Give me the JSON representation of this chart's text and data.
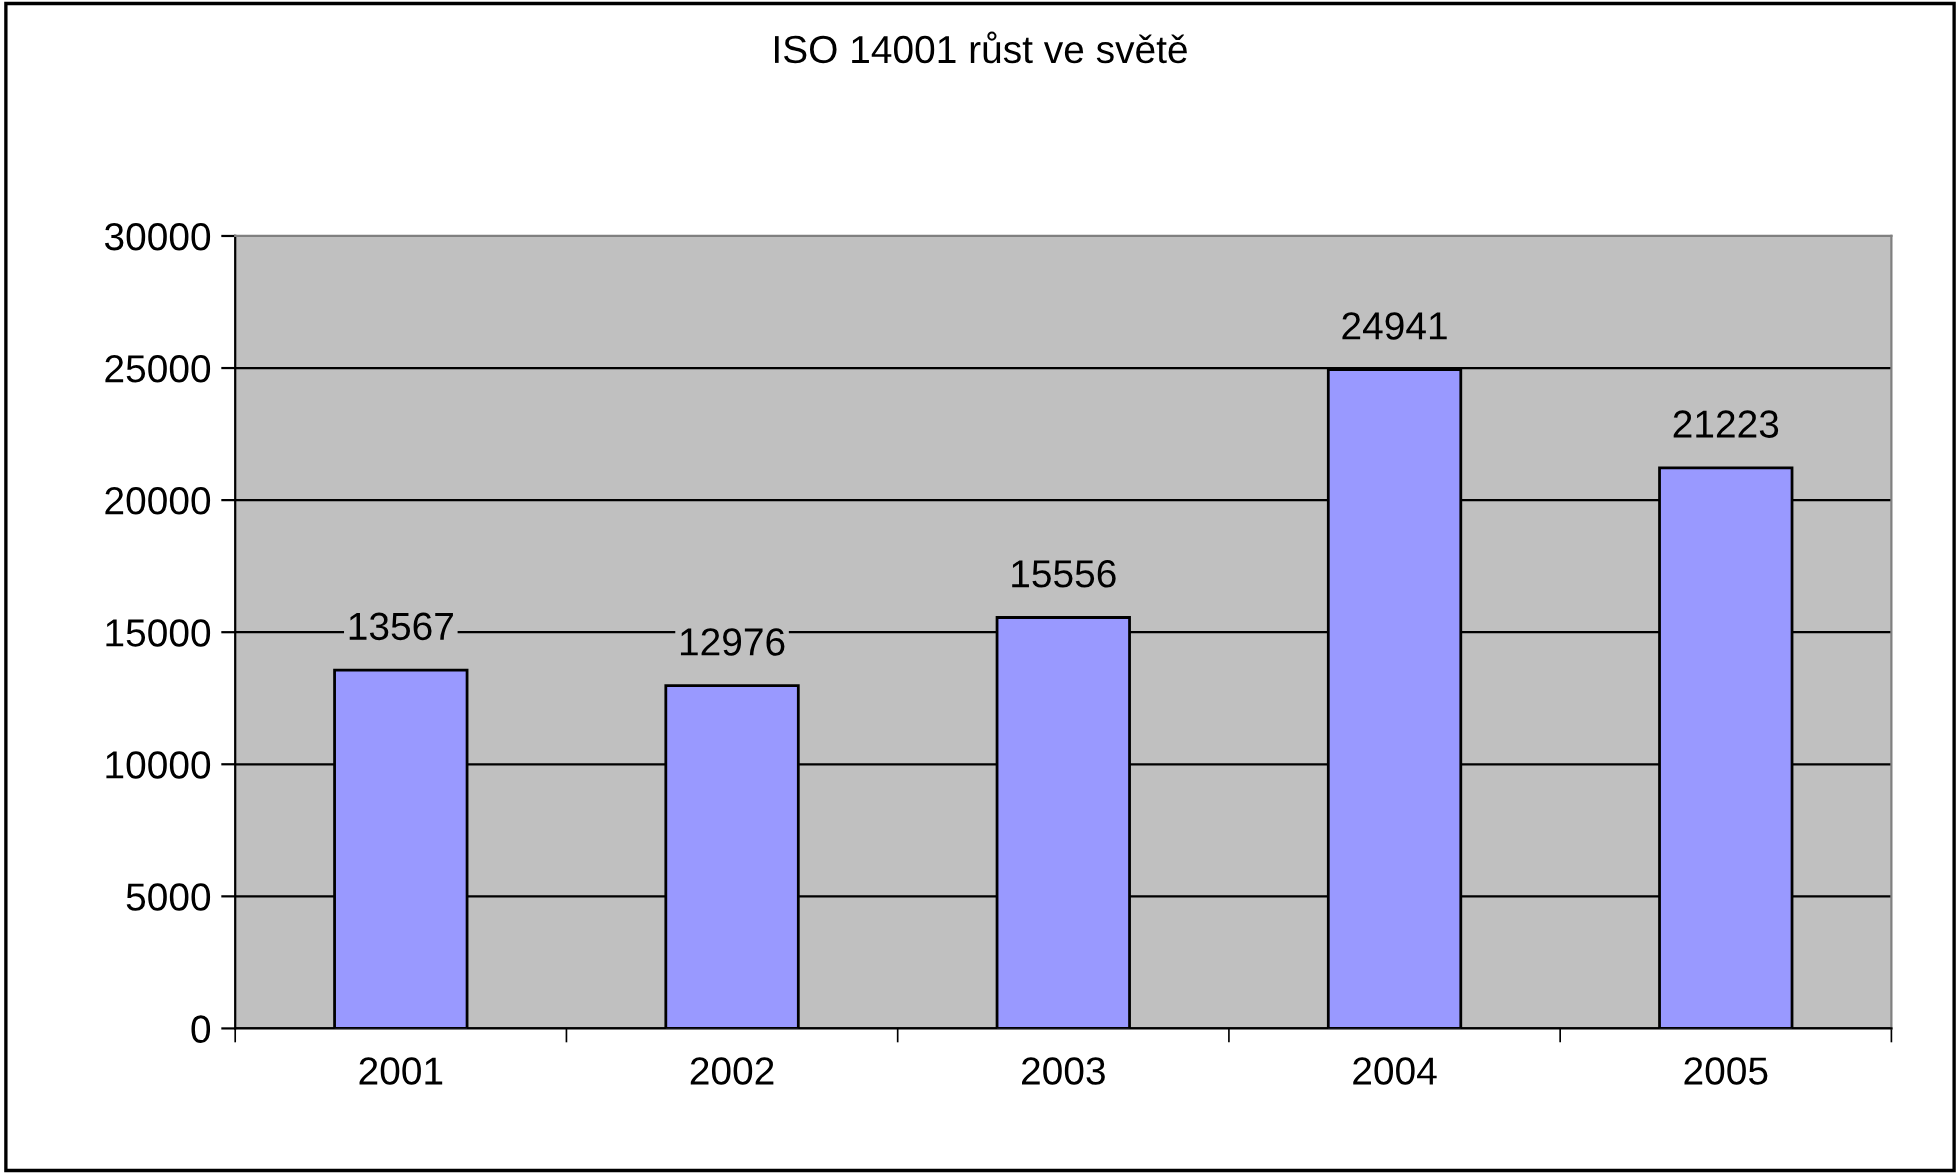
{
  "chart_data": {
    "type": "bar",
    "title": "ISO 14001 růst ve světě",
    "categories": [
      "2001",
      "2002",
      "2003",
      "2004",
      "2005"
    ],
    "values": [
      13567,
      12976,
      15556,
      24941,
      21223
    ],
    "color": "#9999ff",
    "ylim": [
      0,
      30000
    ],
    "yticks": [
      0,
      5000,
      10000,
      15000,
      20000,
      25000,
      30000
    ],
    "grid": "y",
    "data_labels": true,
    "legend": false
  }
}
